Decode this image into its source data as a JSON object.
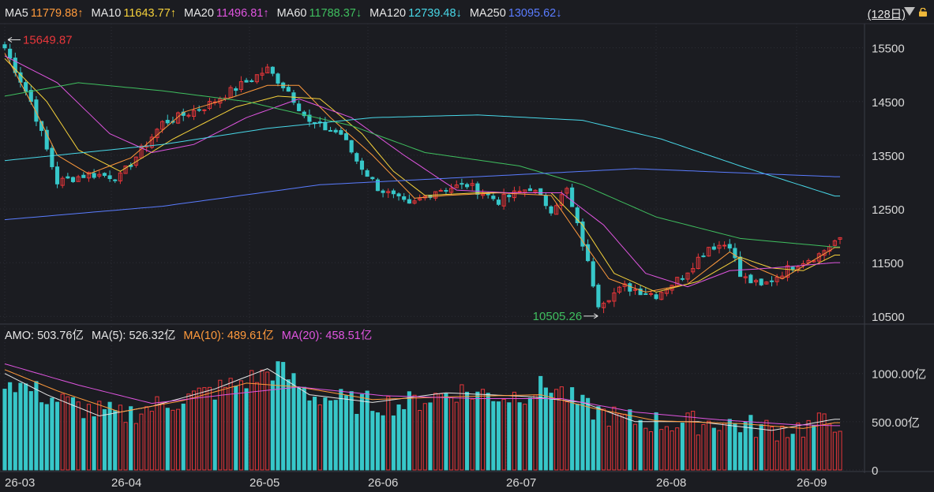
{
  "ma_legend": [
    {
      "label": "MA5",
      "value": "11779.88↑",
      "color": "#ff9a3c"
    },
    {
      "label": "MA10",
      "value": "11643.77↑",
      "color": "#f5d13b"
    },
    {
      "label": "MA20",
      "value": "11496.81↑",
      "color": "#e055e0"
    },
    {
      "label": "MA60",
      "value": "11788.37↓",
      "color": "#3fbf5f"
    },
    {
      "label": "MA120",
      "value": "12739.48↓",
      "color": "#48d8e8"
    },
    {
      "label": "MA250",
      "value": "13095.62↓",
      "color": "#5a7cff"
    }
  ],
  "period_label": "(128日)",
  "amo_legend": [
    {
      "label": "AMO: 503.76亿",
      "color": "#e6e6e6"
    },
    {
      "label": "MA(5): 526.32亿",
      "color": "#e6e6e6"
    },
    {
      "label": "MA(10): 489.61亿",
      "color": "#ff9a3c"
    },
    {
      "label": "MA(20): 458.51亿",
      "color": "#e055e0"
    }
  ],
  "colors": {
    "up": "#e8363a",
    "down": "#37c7c9",
    "grid": "#2c2e36",
    "text": "#d8d8d8"
  },
  "chart_data": {
    "type": "candlestick",
    "x_ticks": [
      "26-03",
      "26-04",
      "26-05",
      "26-06",
      "26-07",
      "26-08",
      "26-09"
    ],
    "y_ticks": [
      "15500",
      "14500",
      "13500",
      "12500",
      "11500",
      "10500"
    ],
    "ylim": [
      10400,
      15950
    ],
    "high_annotation": "15649.87",
    "low_annotation": "10505.26",
    "anchors": [
      {
        "i": 0,
        "v": 15500
      },
      {
        "i": 5,
        "v": 14500
      },
      {
        "i": 10,
        "v": 13000
      },
      {
        "i": 16,
        "v": 13150
      },
      {
        "i": 22,
        "v": 13100
      },
      {
        "i": 30,
        "v": 14100
      },
      {
        "i": 38,
        "v": 14400
      },
      {
        "i": 44,
        "v": 14750
      },
      {
        "i": 50,
        "v": 15100
      },
      {
        "i": 54,
        "v": 14700
      },
      {
        "i": 58,
        "v": 14100
      },
      {
        "i": 64,
        "v": 13900
      },
      {
        "i": 67,
        "v": 13400
      },
      {
        "i": 71,
        "v": 12900
      },
      {
        "i": 77,
        "v": 12550
      },
      {
        "i": 82,
        "v": 12850
      },
      {
        "i": 88,
        "v": 12950
      },
      {
        "i": 94,
        "v": 12650
      },
      {
        "i": 100,
        "v": 12900
      },
      {
        "i": 104,
        "v": 12500
      },
      {
        "i": 107,
        "v": 12850
      },
      {
        "i": 110,
        "v": 11850
      },
      {
        "i": 113,
        "v": 10750
      },
      {
        "i": 118,
        "v": 11050
      },
      {
        "i": 124,
        "v": 10900
      },
      {
        "i": 129,
        "v": 11250
      },
      {
        "i": 134,
        "v": 11800
      },
      {
        "i": 138,
        "v": 11850
      },
      {
        "i": 140,
        "v": 11250
      },
      {
        "i": 144,
        "v": 11050
      },
      {
        "i": 150,
        "v": 11450
      },
      {
        "i": 155,
        "v": 11650
      },
      {
        "i": 158,
        "v": 11900
      }
    ],
    "ma_lines": [
      {
        "name": "MA5",
        "values": [
          [
            0,
            15400
          ],
          [
            6,
            14300
          ],
          [
            10,
            13500
          ],
          [
            16,
            13150
          ],
          [
            24,
            13450
          ],
          [
            34,
            14300
          ],
          [
            44,
            14600
          ],
          [
            50,
            14800
          ],
          [
            56,
            14800
          ],
          [
            62,
            14200
          ],
          [
            70,
            13500
          ],
          [
            78,
            12700
          ],
          [
            84,
            12750
          ],
          [
            94,
            12800
          ],
          [
            104,
            12750
          ],
          [
            110,
            11900
          ],
          [
            115,
            11200
          ],
          [
            122,
            10950
          ],
          [
            130,
            11100
          ],
          [
            138,
            11700
          ],
          [
            142,
            11450
          ],
          [
            148,
            11200
          ],
          [
            158,
            11780
          ]
        ]
      },
      {
        "name": "MA10",
        "values": [
          [
            0,
            15300
          ],
          [
            8,
            14500
          ],
          [
            14,
            13600
          ],
          [
            22,
            13200
          ],
          [
            32,
            13800
          ],
          [
            44,
            14400
          ],
          [
            52,
            14600
          ],
          [
            60,
            14550
          ],
          [
            68,
            13900
          ],
          [
            74,
            13200
          ],
          [
            80,
            12750
          ],
          [
            90,
            12800
          ],
          [
            104,
            12800
          ],
          [
            110,
            12200
          ],
          [
            116,
            11300
          ],
          [
            124,
            10950
          ],
          [
            132,
            11150
          ],
          [
            140,
            11600
          ],
          [
            146,
            11400
          ],
          [
            152,
            11350
          ],
          [
            158,
            11640
          ]
        ]
      },
      {
        "name": "MA20",
        "values": [
          [
            0,
            15350
          ],
          [
            10,
            14850
          ],
          [
            20,
            13900
          ],
          [
            28,
            13550
          ],
          [
            36,
            13700
          ],
          [
            46,
            14200
          ],
          [
            56,
            14550
          ],
          [
            66,
            14200
          ],
          [
            76,
            13500
          ],
          [
            86,
            12850
          ],
          [
            96,
            12800
          ],
          [
            106,
            12800
          ],
          [
            114,
            12200
          ],
          [
            122,
            11300
          ],
          [
            130,
            11050
          ],
          [
            138,
            11350
          ],
          [
            146,
            11400
          ],
          [
            158,
            11500
          ]
        ]
      },
      {
        "name": "MA60",
        "values": [
          [
            0,
            14600
          ],
          [
            14,
            14850
          ],
          [
            30,
            14700
          ],
          [
            46,
            14500
          ],
          [
            66,
            14050
          ],
          [
            80,
            13550
          ],
          [
            98,
            13300
          ],
          [
            110,
            12950
          ],
          [
            124,
            12350
          ],
          [
            140,
            11950
          ],
          [
            158,
            11790
          ]
        ]
      },
      {
        "name": "MA120",
        "values": [
          [
            0,
            13400
          ],
          [
            30,
            13700
          ],
          [
            50,
            14000
          ],
          [
            70,
            14200
          ],
          [
            90,
            14250
          ],
          [
            110,
            14150
          ],
          [
            125,
            13800
          ],
          [
            140,
            13300
          ],
          [
            158,
            12740
          ]
        ]
      },
      {
        "name": "MA250",
        "values": [
          [
            0,
            12300
          ],
          [
            30,
            12550
          ],
          [
            60,
            12950
          ],
          [
            90,
            13100
          ],
          [
            120,
            13250
          ],
          [
            158,
            13100
          ]
        ]
      }
    ],
    "volume": {
      "y_ticks": [
        "1000.00亿",
        "500.00亿",
        "0"
      ],
      "ylim": [
        0,
        1300
      ],
      "anchors": [
        {
          "i": 0,
          "v": 950
        },
        {
          "i": 8,
          "v": 760
        },
        {
          "i": 16,
          "v": 620
        },
        {
          "i": 22,
          "v": 560
        },
        {
          "i": 30,
          "v": 680
        },
        {
          "i": 40,
          "v": 820
        },
        {
          "i": 48,
          "v": 960
        },
        {
          "i": 52,
          "v": 1050
        },
        {
          "i": 58,
          "v": 780
        },
        {
          "i": 66,
          "v": 700
        },
        {
          "i": 76,
          "v": 680
        },
        {
          "i": 86,
          "v": 820
        },
        {
          "i": 96,
          "v": 760
        },
        {
          "i": 104,
          "v": 880
        },
        {
          "i": 110,
          "v": 650
        },
        {
          "i": 118,
          "v": 520
        },
        {
          "i": 128,
          "v": 480
        },
        {
          "i": 136,
          "v": 500
        },
        {
          "i": 146,
          "v": 420
        },
        {
          "i": 152,
          "v": 440
        },
        {
          "i": 158,
          "v": 504
        }
      ],
      "ma_lines": [
        {
          "name": "MA(5)",
          "values": [
            [
              0,
              1000
            ],
            [
              8,
              780
            ],
            [
              18,
              560
            ],
            [
              28,
              660
            ],
            [
              40,
              840
            ],
            [
              50,
              1050
            ],
            [
              58,
              780
            ],
            [
              70,
              700
            ],
            [
              84,
              800
            ],
            [
              100,
              760
            ],
            [
              110,
              700
            ],
            [
              120,
              500
            ],
            [
              132,
              500
            ],
            [
              146,
              410
            ],
            [
              158,
              526
            ]
          ]
        },
        {
          "name": "MA(10)",
          "values": [
            [
              0,
              1040
            ],
            [
              10,
              820
            ],
            [
              22,
              600
            ],
            [
              34,
              720
            ],
            [
              46,
              900
            ],
            [
              56,
              860
            ],
            [
              70,
              730
            ],
            [
              86,
              760
            ],
            [
              102,
              780
            ],
            [
              112,
              640
            ],
            [
              124,
              510
            ],
            [
              140,
              480
            ],
            [
              152,
              430
            ],
            [
              158,
              490
            ]
          ]
        },
        {
          "name": "MA(20)",
          "values": [
            [
              0,
              1100
            ],
            [
              14,
              880
            ],
            [
              28,
              690
            ],
            [
              42,
              780
            ],
            [
              56,
              860
            ],
            [
              72,
              770
            ],
            [
              90,
              740
            ],
            [
              106,
              740
            ],
            [
              120,
              600
            ],
            [
              136,
              520
            ],
            [
              150,
              470
            ],
            [
              158,
              459
            ]
          ]
        }
      ]
    }
  }
}
